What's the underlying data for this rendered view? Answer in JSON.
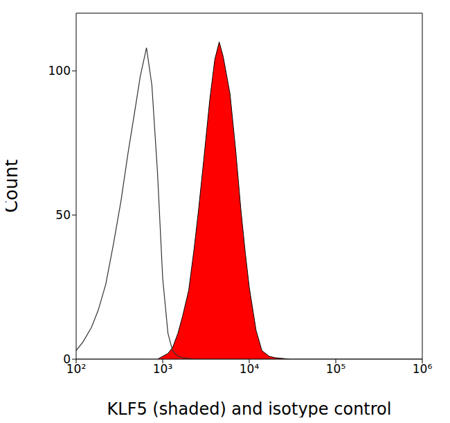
{
  "chart_data": {
    "type": "area",
    "xlabel": "KLF5 (shaded) and isotype control",
    "ylabel": "Count",
    "log": "x",
    "grid": false,
    "x": [
      100,
      120,
      150,
      180,
      220,
      270,
      330,
      400,
      470,
      550,
      650,
      750,
      870,
      1000,
      1150,
      1300,
      1500,
      1700,
      2000,
      2300,
      2600,
      3000,
      3500,
      4000,
      4500,
      5000,
      6000,
      7000,
      8000,
      9000,
      10000,
      12000,
      14000,
      17000,
      20000,
      30000,
      100000,
      1000000
    ],
    "series": [
      {
        "type": "line",
        "color": "#333333",
        "values": [
          3,
          6,
          11,
          17,
          26,
          40,
          55,
          72,
          85,
          98,
          108,
          95,
          65,
          28,
          9,
          3,
          1,
          0.5,
          0.3,
          0,
          0,
          0,
          0,
          0,
          0,
          0,
          0,
          0,
          0,
          0,
          0,
          0,
          0,
          0,
          0,
          0,
          0,
          0
        ]
      },
      {
        "type": "area",
        "color": "#ff0000",
        "values": [
          0,
          0,
          0,
          0,
          0,
          0,
          0,
          0,
          0,
          0,
          0,
          0,
          0,
          1,
          2,
          4,
          9,
          15,
          24,
          38,
          52,
          70,
          90,
          104,
          110,
          105,
          92,
          72,
          52,
          37,
          25,
          10,
          3,
          1,
          0.5,
          0,
          0,
          0
        ]
      }
    ],
    "xlim": [
      100,
      1000000
    ],
    "xticks": [
      {
        "value": 100,
        "label": "10²"
      },
      {
        "value": 1000,
        "label": "10³"
      },
      {
        "value": 10000,
        "label": "10⁴"
      },
      {
        "value": 100000,
        "label": "10⁵"
      },
      {
        "value": 1000000,
        "label": "10⁶"
      }
    ],
    "ylim": [
      0,
      120
    ],
    "yticks": [
      0,
      50,
      100
    ]
  }
}
